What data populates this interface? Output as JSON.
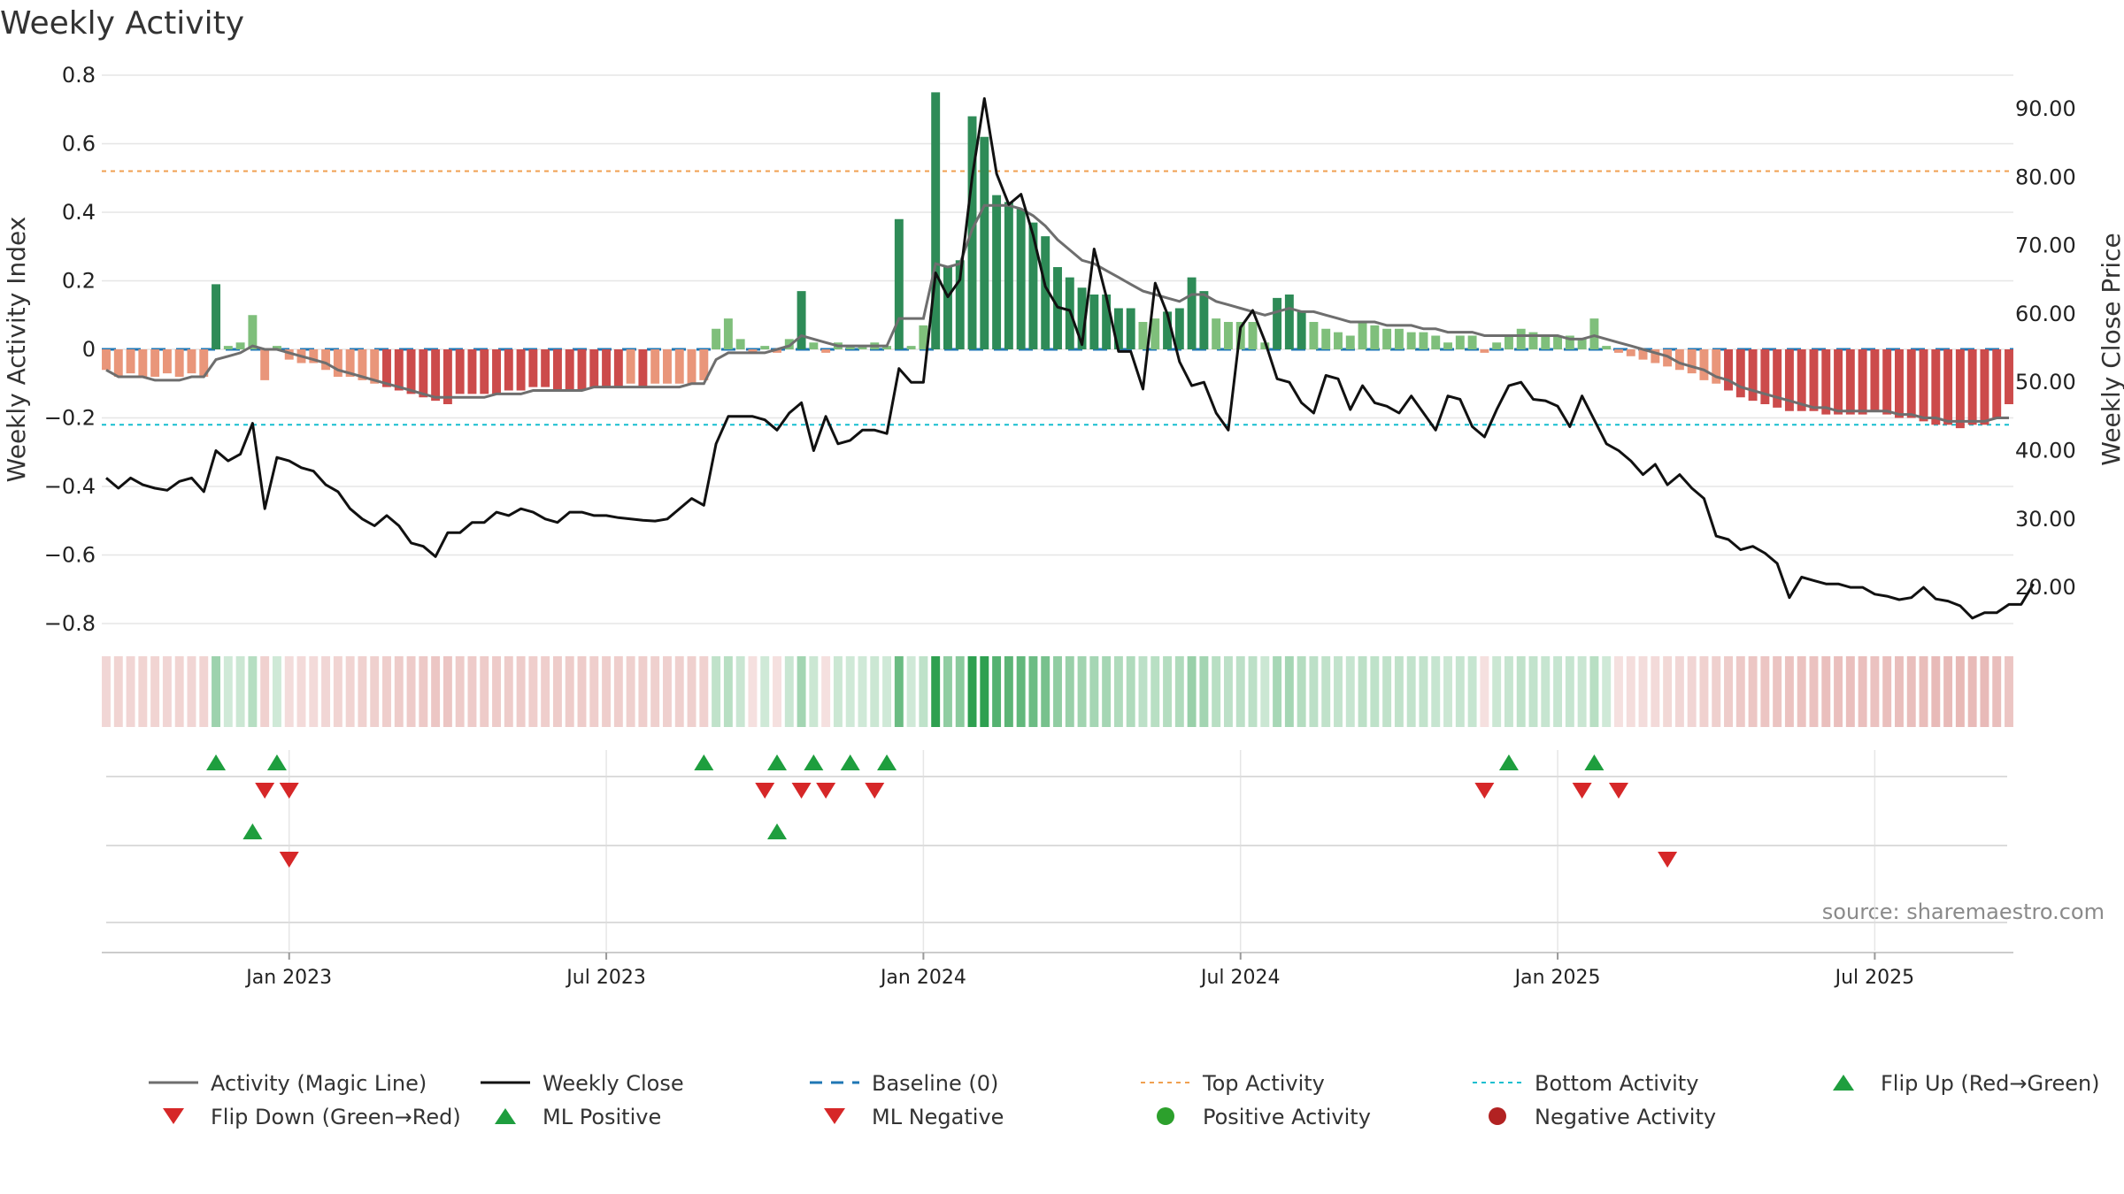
{
  "chart_data": {
    "type": "bar",
    "title": "Weekly Activity",
    "ylabel_left": "Weekly Activity Index",
    "ylabel_right": "Weekly Close Price",
    "source_label": "source: sharemaestro.com",
    "ylim_left": [
      -0.8,
      0.8
    ],
    "yticks_left": [
      {
        "v": 0.8,
        "label": "0.8"
      },
      {
        "v": 0.6,
        "label": "0.6"
      },
      {
        "v": 0.4,
        "label": "0.4"
      },
      {
        "v": 0.2,
        "label": "0.2"
      },
      {
        "v": 0,
        "label": "0"
      },
      {
        "v": -0.2,
        "label": "−0.2"
      },
      {
        "v": -0.4,
        "label": "−0.4"
      },
      {
        "v": -0.6,
        "label": "−0.6"
      },
      {
        "v": -0.8,
        "label": "−0.8"
      }
    ],
    "ylim_right": [
      10,
      96
    ],
    "yticks_right": [
      {
        "v": 90,
        "label": "90.00"
      },
      {
        "v": 80,
        "label": "80.00"
      },
      {
        "v": 70,
        "label": "70.00"
      },
      {
        "v": 60,
        "label": "60.00"
      },
      {
        "v": 50,
        "label": "50.00"
      },
      {
        "v": 40,
        "label": "40.00"
      },
      {
        "v": 30,
        "label": "30.00"
      },
      {
        "v": 20,
        "label": "20.00"
      }
    ],
    "xticks": [
      {
        "week": 15,
        "label": "Jan 2023"
      },
      {
        "week": 41,
        "label": "Jul 2023"
      },
      {
        "week": 67,
        "label": "Jan 2024"
      },
      {
        "week": 93,
        "label": "Jul 2024"
      },
      {
        "week": 119,
        "label": "Jan 2025"
      },
      {
        "week": 145,
        "label": "Jul 2025"
      }
    ],
    "weeks": 157,
    "top_activity": 0.52,
    "bottom_activity": -0.22,
    "activity_index": [
      -0.06,
      -0.08,
      -0.07,
      -0.08,
      -0.08,
      -0.07,
      -0.08,
      -0.07,
      -0.08,
      0.19,
      0.01,
      0.02,
      0.1,
      -0.09,
      0.01,
      -0.03,
      -0.04,
      -0.04,
      -0.06,
      -0.08,
      -0.08,
      -0.09,
      -0.1,
      -0.11,
      -0.12,
      -0.13,
      -0.14,
      -0.15,
      -0.16,
      -0.13,
      -0.13,
      -0.13,
      -0.13,
      -0.12,
      -0.12,
      -0.11,
      -0.11,
      -0.12,
      -0.12,
      -0.12,
      -0.11,
      -0.11,
      -0.11,
      -0.1,
      -0.11,
      -0.1,
      -0.1,
      -0.1,
      -0.1,
      -0.09,
      0.06,
      0.09,
      0.03,
      -0.01,
      0.01,
      -0.01,
      0.03,
      0.17,
      0.02,
      -0.01,
      0.02,
      0.01,
      0.01,
      0.02,
      0.01,
      0.38,
      0.01,
      0.07,
      0.75,
      0.24,
      0.26,
      0.68,
      0.62,
      0.45,
      0.43,
      0.41,
      0.37,
      0.33,
      0.24,
      0.21,
      0.18,
      0.16,
      0.16,
      0.12,
      0.12,
      0.08,
      0.09,
      0.11,
      0.12,
      0.21,
      0.17,
      0.09,
      0.08,
      0.08,
      0.08,
      0.02,
      0.15,
      0.16,
      0.11,
      0.08,
      0.06,
      0.05,
      0.04,
      0.08,
      0.07,
      0.06,
      0.06,
      0.05,
      0.05,
      0.04,
      0.02,
      0.04,
      0.04,
      -0.01,
      0.02,
      0.04,
      0.06,
      0.05,
      0.04,
      0.04,
      0.04,
      0.03,
      0.09,
      0.01,
      -0.01,
      -0.02,
      -0.03,
      -0.04,
      -0.05,
      -0.06,
      -0.07,
      -0.09,
      -0.1,
      -0.12,
      -0.14,
      -0.15,
      -0.16,
      -0.17,
      -0.18,
      -0.18,
      -0.18,
      -0.19,
      -0.19,
      -0.19,
      -0.19,
      -0.18,
      -0.19,
      -0.2,
      -0.2,
      -0.21,
      -0.22,
      -0.22,
      -0.23,
      -0.22,
      -0.22,
      -0.2,
      -0.16
    ],
    "magic_line": [
      -0.06,
      -0.08,
      -0.08,
      -0.08,
      -0.09,
      -0.09,
      -0.09,
      -0.08,
      -0.08,
      -0.03,
      -0.02,
      -0.01,
      0.01,
      0.0,
      0.0,
      -0.01,
      -0.02,
      -0.03,
      -0.04,
      -0.06,
      -0.07,
      -0.08,
      -0.09,
      -0.1,
      -0.11,
      -0.12,
      -0.13,
      -0.14,
      -0.14,
      -0.14,
      -0.14,
      -0.14,
      -0.13,
      -0.13,
      -0.13,
      -0.12,
      -0.12,
      -0.12,
      -0.12,
      -0.12,
      -0.11,
      -0.11,
      -0.11,
      -0.11,
      -0.11,
      -0.11,
      -0.11,
      -0.11,
      -0.1,
      -0.1,
      -0.03,
      -0.01,
      -0.01,
      -0.01,
      -0.01,
      0.0,
      0.01,
      0.04,
      0.03,
      0.02,
      0.01,
      0.01,
      0.01,
      0.01,
      0.01,
      0.09,
      0.09,
      0.09,
      0.25,
      0.24,
      0.25,
      0.35,
      0.42,
      0.42,
      0.42,
      0.41,
      0.39,
      0.36,
      0.32,
      0.29,
      0.26,
      0.25,
      0.23,
      0.21,
      0.19,
      0.17,
      0.16,
      0.15,
      0.14,
      0.16,
      0.16,
      0.14,
      0.13,
      0.12,
      0.11,
      0.1,
      0.11,
      0.12,
      0.11,
      0.11,
      0.1,
      0.09,
      0.08,
      0.08,
      0.08,
      0.07,
      0.07,
      0.07,
      0.06,
      0.06,
      0.05,
      0.05,
      0.05,
      0.04,
      0.04,
      0.04,
      0.04,
      0.04,
      0.04,
      0.04,
      0.03,
      0.03,
      0.04,
      0.03,
      0.02,
      0.01,
      0.0,
      -0.01,
      -0.02,
      -0.04,
      -0.05,
      -0.06,
      -0.08,
      -0.09,
      -0.11,
      -0.12,
      -0.13,
      -0.14,
      -0.15,
      -0.16,
      -0.17,
      -0.17,
      -0.18,
      -0.18,
      -0.18,
      -0.18,
      -0.18,
      -0.19,
      -0.19,
      -0.2,
      -0.2,
      -0.21,
      -0.21,
      -0.21,
      -0.21,
      -0.2,
      -0.2
    ],
    "weekly_close": [
      36,
      34.5,
      36,
      35,
      34.5,
      34.2,
      35.5,
      36,
      34,
      40,
      38.5,
      39.5,
      44,
      31.5,
      39,
      38.5,
      37.5,
      37,
      35,
      34,
      31.5,
      30,
      29,
      30.5,
      29,
      26.5,
      26,
      24.5,
      28,
      28,
      29.5,
      29.5,
      31,
      30.5,
      31.5,
      31,
      30,
      29.5,
      31,
      31,
      30.5,
      30.5,
      30.2,
      30,
      29.8,
      29.7,
      30,
      31.5,
      33,
      32,
      41,
      45,
      45,
      45,
      44.5,
      43,
      45.5,
      47,
      40,
      45,
      41,
      41.5,
      43,
      43,
      42.5,
      52,
      50,
      50,
      66,
      62.5,
      65,
      80,
      91.5,
      80.5,
      76,
      77.5,
      71.5,
      64,
      61,
      60.5,
      55.5,
      69.5,
      62.5,
      54.5,
      54.5,
      49,
      64.5,
      60,
      53,
      49.5,
      50,
      45.5,
      43,
      58,
      60.5,
      56,
      50.5,
      50,
      47,
      45.5,
      51,
      50.5,
      46,
      49.5,
      47,
      46.5,
      45.5,
      48,
      45.5,
      43,
      48,
      47.5,
      43.5,
      42,
      46,
      49.5,
      50,
      47.5,
      47.3,
      46.5,
      43.5,
      48,
      44.5,
      41,
      40,
      38.5,
      36.5,
      38,
      35,
      36.5,
      34.5,
      33,
      27.5,
      27,
      25.5,
      26,
      25,
      23.5,
      18.5,
      21.5,
      21,
      20.5,
      20.5,
      20,
      20,
      19,
      18.7,
      18.2,
      18.5,
      20,
      18.3,
      18,
      17.3,
      15.5,
      16.3,
      16.3,
      17.5,
      17.5,
      20.5
    ],
    "ml_rows": {
      "row1_flip_up": [
        9,
        14,
        49,
        55,
        58,
        61,
        64,
        115,
        122
      ],
      "row1_flip_down": [
        13,
        15,
        54,
        57,
        59,
        63,
        113,
        121,
        124
      ],
      "row2_ml_positive": [
        12,
        55
      ],
      "row2_ml_negative": [
        15,
        128
      ]
    },
    "colors": {
      "strong_green": "#2e8b57",
      "light_green": "#7fbf7b",
      "strong_red": "#cc4b4b",
      "light_red": "#e9967a",
      "magic_line": "#6e6e6e",
      "weekly_close": "#111111",
      "baseline": "#1f77b4",
      "top_activity": "#f0a050",
      "bottom_activity": "#17becf",
      "flip_up": "#1e9e3e",
      "flip_down": "#d62728",
      "positive_dot": "#2ca02c",
      "negative_dot": "#b22222",
      "grid": "#e6e6e6"
    },
    "legend": [
      {
        "label": "Activity (Magic Line)",
        "style": "line-gray"
      },
      {
        "label": "Weekly Close",
        "style": "line-black"
      },
      {
        "label": "Baseline (0)",
        "style": "line-dashed-blue"
      },
      {
        "label": "Top Activity",
        "style": "line-dotted-orange"
      },
      {
        "label": "Bottom Activity",
        "style": "line-dotted-cyan"
      },
      {
        "label": "Flip Up (Red→Green)",
        "style": "tri-up-green"
      },
      {
        "label": "Flip Down (Green→Red)",
        "style": "tri-down-red"
      },
      {
        "label": "ML Positive",
        "style": "tri-up-green"
      },
      {
        "label": "ML Negative",
        "style": "tri-down-red"
      },
      {
        "label": "Positive Activity",
        "style": "dot-green"
      },
      {
        "label": "Negative Activity",
        "style": "dot-red"
      }
    ]
  }
}
